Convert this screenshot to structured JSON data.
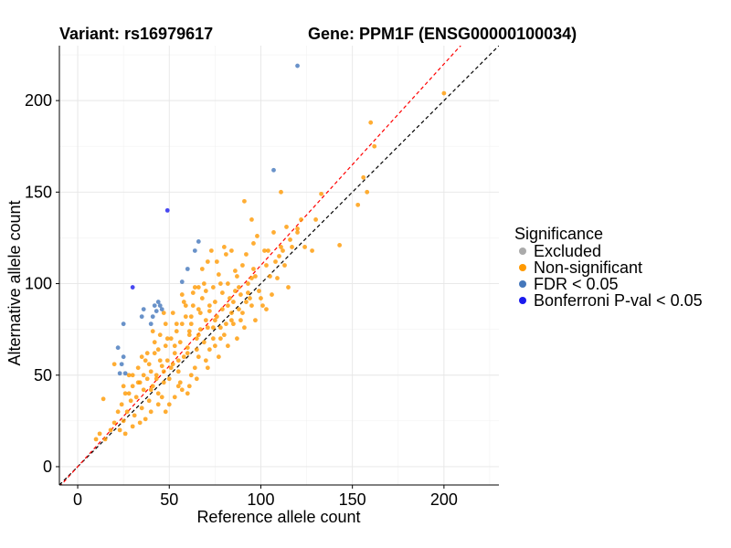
{
  "header": {
    "variant_title": "Variant: rs16979617",
    "gene_title": "Gene: PPM1F (ENSG00000100034)"
  },
  "chart_data": {
    "type": "scatter",
    "title": "Variant: rs16979617    Gene: PPM1F (ENSG00000100034)",
    "xlabel": "Reference allele count",
    "ylabel": "Alternative allele count",
    "xlim": [
      -10,
      230
    ],
    "ylim": [
      -10,
      230
    ],
    "xticks": [
      0,
      50,
      100,
      150,
      200
    ],
    "yticks": [
      0,
      50,
      100,
      150,
      200
    ],
    "grid": true,
    "reference_lines": [
      {
        "name": "identity",
        "slope": 1.0,
        "intercept": 0,
        "color": "#000000",
        "dash": "dashed"
      },
      {
        "name": "fitted",
        "slope": 1.1,
        "intercept": 0,
        "color": "#ff0000",
        "dash": "dashed"
      }
    ],
    "legend": {
      "title": "Significance",
      "position": "right",
      "entries": [
        {
          "label": "Excluded",
          "color": "#aaaaaa"
        },
        {
          "label": "Non-significant",
          "color": "#ff9900"
        },
        {
          "label": "FDR < 0.05",
          "color": "#4477bb"
        },
        {
          "label": "Bonferroni P-val < 0.05",
          "color": "#1a1aee"
        }
      ]
    },
    "series": [
      {
        "name": "Non-significant",
        "color": "#ff9900",
        "points": [
          [
            200,
            204
          ],
          [
            160,
            188
          ],
          [
            162,
            175
          ],
          [
            156,
            158
          ],
          [
            158,
            150
          ],
          [
            153,
            143
          ],
          [
            133,
            149
          ],
          [
            143,
            121
          ],
          [
            130,
            135
          ],
          [
            122,
            135
          ],
          [
            120,
            130
          ],
          [
            111,
            150
          ],
          [
            114,
            131
          ],
          [
            117,
            120
          ],
          [
            111,
            120
          ],
          [
            107,
            128
          ],
          [
            110,
            115
          ],
          [
            103,
            110
          ],
          [
            113,
            110
          ],
          [
            109,
            103
          ],
          [
            96,
            122
          ],
          [
            102,
            118
          ],
          [
            95,
            103
          ],
          [
            93,
            95
          ],
          [
            95,
            135
          ],
          [
            91,
            145
          ],
          [
            90,
            110
          ],
          [
            88,
            98
          ],
          [
            86,
            107
          ],
          [
            84,
            118
          ],
          [
            82,
            100
          ],
          [
            80,
            120
          ],
          [
            79,
            95
          ],
          [
            77,
            105
          ],
          [
            75,
            90
          ],
          [
            74,
            98
          ],
          [
            72,
            85
          ],
          [
            71,
            112
          ],
          [
            70,
            80
          ],
          [
            68,
            92
          ],
          [
            67,
            75
          ],
          [
            66,
            86
          ],
          [
            65,
            70
          ],
          [
            64,
            98
          ],
          [
            62,
            82
          ],
          [
            61,
            72
          ],
          [
            60,
            65
          ],
          [
            59,
            88
          ],
          [
            58,
            60
          ],
          [
            57,
            78
          ],
          [
            56,
            68
          ],
          [
            55,
            52
          ],
          [
            54,
            74
          ],
          [
            53,
            62
          ],
          [
            52,
            56
          ],
          [
            51,
            70
          ],
          [
            50,
            48
          ],
          [
            49,
            58
          ],
          [
            48,
            66
          ],
          [
            47,
            46
          ],
          [
            46,
            55
          ],
          [
            45,
            72
          ],
          [
            44,
            40
          ],
          [
            43,
            50
          ],
          [
            42,
            62
          ],
          [
            41,
            44
          ],
          [
            40,
            52
          ],
          [
            39,
            36
          ],
          [
            38,
            48
          ],
          [
            37,
            58
          ],
          [
            36,
            42
          ],
          [
            35,
            32
          ],
          [
            34,
            46
          ],
          [
            33,
            54
          ],
          [
            32,
            38
          ],
          [
            31,
            28
          ],
          [
            30,
            44
          ],
          [
            29,
            36
          ],
          [
            28,
            50
          ],
          [
            27,
            30
          ],
          [
            26,
            40
          ],
          [
            25,
            25
          ],
          [
            24,
            34
          ],
          [
            23,
            20
          ],
          [
            22,
            30
          ],
          [
            20,
            24
          ],
          [
            18,
            20
          ],
          [
            15,
            15
          ],
          [
            14,
            37
          ],
          [
            12,
            18
          ],
          [
            10,
            15
          ],
          [
            20,
            56
          ],
          [
            25,
            44
          ],
          [
            30,
            50
          ],
          [
            35,
            60
          ],
          [
            28,
            40
          ],
          [
            38,
            62
          ],
          [
            42,
            68
          ],
          [
            48,
            78
          ],
          [
            52,
            84
          ],
          [
            58,
            90
          ],
          [
            63,
            95
          ],
          [
            69,
            100
          ],
          [
            76,
            112
          ],
          [
            81,
            116
          ],
          [
            87,
            104
          ],
          [
            92,
            116
          ],
          [
            98,
            126
          ],
          [
            104,
            118
          ],
          [
            108,
            112
          ],
          [
            62,
            50
          ],
          [
            70,
            58
          ],
          [
            75,
            66
          ],
          [
            80,
            72
          ],
          [
            85,
            78
          ],
          [
            90,
            84
          ],
          [
            95,
            88
          ],
          [
            100,
            92
          ],
          [
            56,
            46
          ],
          [
            60,
            40
          ],
          [
            66,
            60
          ],
          [
            72,
            64
          ],
          [
            78,
            70
          ],
          [
            84,
            80
          ],
          [
            88,
            86
          ],
          [
            94,
            92
          ],
          [
            99,
            96
          ],
          [
            46,
            38
          ],
          [
            50,
            34
          ],
          [
            55,
            44
          ],
          [
            64,
            54
          ],
          [
            74,
            76
          ],
          [
            82,
            88
          ],
          [
            89,
            94
          ],
          [
            97,
            104
          ],
          [
            101,
            88
          ],
          [
            68,
            108
          ],
          [
            73,
            118
          ],
          [
            66,
            98
          ],
          [
            63,
            88
          ],
          [
            59,
            82
          ],
          [
            54,
            78
          ],
          [
            49,
            70
          ],
          [
            44,
            64
          ],
          [
            39,
            56
          ],
          [
            36,
            50
          ],
          [
            33,
            46
          ],
          [
            41,
            74
          ],
          [
            47,
            84
          ],
          [
            57,
            94
          ],
          [
            70,
            96
          ],
          [
            78,
            100
          ],
          [
            83,
            92
          ],
          [
            86,
            96
          ],
          [
            93,
            100
          ],
          [
            96,
            108
          ],
          [
            105,
            104
          ],
          [
            112,
            118
          ],
          [
            116,
            124
          ],
          [
            120,
            128
          ],
          [
            124,
            120
          ],
          [
            128,
            118
          ],
          [
            115,
            98
          ],
          [
            106,
            94
          ],
          [
            103,
            86
          ],
          [
            97,
            80
          ],
          [
            91,
            76
          ],
          [
            87,
            70
          ],
          [
            82,
            66
          ],
          [
            77,
            60
          ],
          [
            71,
            54
          ],
          [
            65,
            48
          ],
          [
            61,
            44
          ],
          [
            57,
            42
          ],
          [
            53,
            38
          ],
          [
            48,
            30
          ],
          [
            44,
            34
          ],
          [
            40,
            30
          ],
          [
            37,
            26
          ],
          [
            34,
            24
          ],
          [
            30,
            22
          ],
          [
            26,
            18
          ],
          [
            62,
            78
          ],
          [
            67,
            84
          ],
          [
            72,
            88
          ],
          [
            76,
            82
          ],
          [
            79,
            86
          ],
          [
            81,
            78
          ],
          [
            85,
            90
          ],
          [
            89,
            80
          ],
          [
            92,
            90
          ],
          [
            74,
            70
          ],
          [
            69,
            68
          ],
          [
            65,
            64
          ],
          [
            60,
            62
          ],
          [
            55,
            58
          ],
          [
            51,
            54
          ],
          [
            47,
            52
          ],
          [
            43,
            48
          ],
          [
            40,
            42
          ],
          [
            45,
            58
          ],
          [
            53,
            66
          ],
          [
            61,
            74
          ],
          [
            66,
            72
          ],
          [
            71,
            76
          ],
          [
            75,
            80
          ],
          [
            78,
            76
          ],
          [
            84,
            84
          ]
        ]
      },
      {
        "name": "FDR < 0.05",
        "color": "#4477bb",
        "points": [
          [
            120,
            219
          ],
          [
            107,
            162
          ],
          [
            66,
            123
          ],
          [
            64,
            118
          ],
          [
            60,
            108
          ],
          [
            57,
            101
          ],
          [
            44,
            90
          ],
          [
            42,
            88
          ],
          [
            45,
            88
          ],
          [
            46,
            86
          ],
          [
            43,
            85
          ],
          [
            41,
            82
          ],
          [
            40,
            78
          ],
          [
            36,
            86
          ],
          [
            35,
            82
          ],
          [
            25,
            78
          ],
          [
            22,
            65
          ],
          [
            25,
            60
          ],
          [
            24,
            56
          ],
          [
            23,
            51
          ],
          [
            26,
            51
          ]
        ]
      },
      {
        "name": "Bonferroni P-val < 0.05",
        "color": "#1a1aee",
        "points": [
          [
            49,
            140
          ],
          [
            30,
            98
          ]
        ]
      }
    ]
  }
}
